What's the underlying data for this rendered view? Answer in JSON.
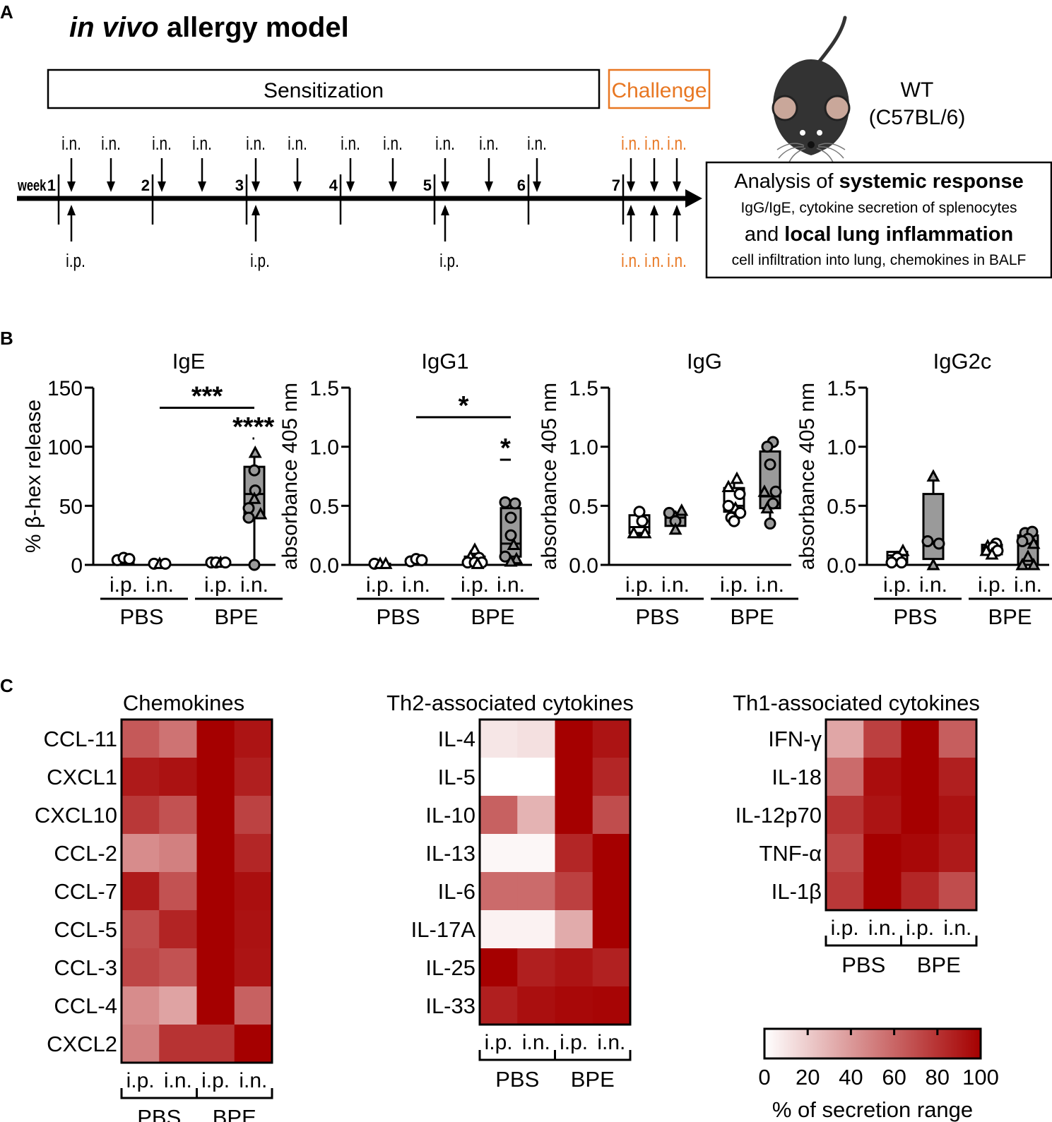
{
  "panel_a": {
    "label": "A",
    "title_italic": "in vivo",
    "title_rest": " allergy model",
    "sensitization": "Sensitization",
    "challenge": "Challenge",
    "week_label": "week",
    "weeks": [
      "1",
      "2",
      "3",
      "4",
      "5",
      "6",
      "7"
    ],
    "in_label": "i.n.",
    "ip_label": "i.p.",
    "strain_line1": "WT",
    "strain_line2": "(C57BL/6)",
    "analysis_pre": "Analysis of ",
    "analysis_bold1": "systemic response",
    "analysis_line2": "IgG/IgE, cytokine secretion of splenocytes",
    "analysis_pre3": "and ",
    "analysis_bold3": "local lung inflammation",
    "analysis_line4": "cell infiltration into lung, chemokines in BALF",
    "colors": {
      "accent": "#e87722"
    }
  },
  "panel_b": {
    "label": "B"
  },
  "panel_c": {
    "label": "C",
    "legend_title": "% of secretion range",
    "legend_ticks": [
      "0",
      "20",
      "40",
      "60",
      "80",
      "100"
    ]
  },
  "chart_data": [
    {
      "type": "box",
      "title": "IgE",
      "ylabel": "% β-hex release",
      "ylim": [
        0,
        150
      ],
      "yticks": [
        "0",
        "50",
        "100",
        "150"
      ],
      "categories": [
        "i.p.",
        "i.n.",
        "i.p.",
        "i.n."
      ],
      "groups": [
        "PBS",
        "BPE"
      ],
      "boxes": [
        {
          "min": 0,
          "q1": 1,
          "median": 3,
          "q3": 5,
          "max": 6,
          "fill": "#ffffff",
          "points": [
            [
              -0.22,
              "o",
              4
            ],
            [
              0,
              "o",
              6
            ],
            [
              0.2,
              "o",
              5
            ]
          ]
        },
        {
          "min": 0,
          "q1": 0.5,
          "median": 1,
          "q3": 2,
          "max": 2.5,
          "fill": "#ffffff",
          "points": [
            [
              -0.2,
              "o",
              1
            ],
            [
              0,
              "^",
              1
            ],
            [
              0.2,
              "o",
              1
            ]
          ]
        },
        {
          "min": 0,
          "q1": 0.5,
          "median": 1.5,
          "q3": 2,
          "max": 3,
          "fill": "#ffffff",
          "points": [
            [
              -0.25,
              "o",
              2
            ],
            [
              -0.08,
              "o",
              2
            ],
            [
              0.08,
              "^",
              2
            ],
            [
              0.25,
              "o",
              2
            ]
          ]
        },
        {
          "min": 0,
          "q1": 40,
          "median": 60,
          "q3": 83,
          "max": 95,
          "fill": "#9a9a9a",
          "points": [
            [
              0.03,
              "^",
              95
            ],
            [
              0,
              "o",
              80
            ],
            [
              0.03,
              "o",
              63
            ],
            [
              0,
              "^",
              56
            ],
            [
              -0.2,
              "o",
              48
            ],
            [
              0.22,
              "^",
              43
            ],
            [
              -0.2,
              "o",
              40
            ],
            [
              0,
              "o",
              0
            ]
          ]
        }
      ],
      "significance": [
        {
          "from": 1,
          "to": 3,
          "y": 133,
          "label": "***"
        },
        {
          "from": 2.95,
          "to": 3.3,
          "y": 107,
          "label": "****"
        }
      ]
    },
    {
      "type": "box",
      "title": "IgG1",
      "ylabel": "absorbance 405 nm",
      "ylim": [
        0,
        1.5
      ],
      "yticks": [
        "0.0",
        "0.5",
        "1.0",
        "1.5"
      ],
      "categories": [
        "i.p.",
        "i.n.",
        "i.p.",
        "i.n."
      ],
      "groups": [
        "PBS",
        "BPE"
      ],
      "boxes": [
        {
          "min": 0,
          "q1": 0,
          "median": 0,
          "q3": 0.01,
          "max": 0.02,
          "fill": "#ffffff",
          "points": [
            [
              -0.2,
              "o",
              0.01
            ],
            [
              0,
              "^",
              0.01
            ],
            [
              0.2,
              "^",
              0.01
            ]
          ]
        },
        {
          "min": 0,
          "q1": 0.01,
          "median": 0.03,
          "q3": 0.05,
          "max": 0.06,
          "fill": "#ffffff",
          "points": [
            [
              -0.2,
              "o",
              0.03
            ],
            [
              0,
              "o",
              0.05
            ],
            [
              0.2,
              "o",
              0.04
            ]
          ]
        },
        {
          "min": 0,
          "q1": 0.01,
          "median": 0.03,
          "q3": 0.07,
          "max": 0.13,
          "fill": "#ffffff",
          "points": [
            [
              0,
              "^",
              0.13
            ],
            [
              -0.15,
              "^",
              0.07
            ],
            [
              0.15,
              "o",
              0.06
            ],
            [
              -0.25,
              "o",
              0.02
            ],
            [
              0,
              "o",
              0.02
            ],
            [
              0.25,
              "o",
              0.02
            ],
            [
              0.1,
              "^",
              0.01
            ]
          ]
        },
        {
          "min": 0.03,
          "q1": 0.07,
          "median": 0.18,
          "q3": 0.48,
          "max": 0.54,
          "fill": "#9a9a9a",
          "points": [
            [
              -0.2,
              "o",
              0.53
            ],
            [
              0.15,
              "o",
              0.52
            ],
            [
              0,
              "o",
              0.4
            ],
            [
              0,
              "o",
              0.25
            ],
            [
              0.1,
              "^",
              0.17
            ],
            [
              -0.2,
              "o",
              0.07
            ],
            [
              0.2,
              "^",
              0.05
            ],
            [
              0,
              "^",
              0.03
            ]
          ]
        }
      ],
      "significance": [
        {
          "from": 1,
          "to": 3,
          "y": 1.25,
          "label": "*"
        },
        {
          "from": 2.7,
          "to": 3.2,
          "y": 0.89,
          "label": "*"
        }
      ]
    },
    {
      "type": "box",
      "title": "IgG",
      "ylabel": "absorbance 405 nm",
      "ylim": [
        0,
        1.5
      ],
      "yticks": [
        "0.0",
        "0.5",
        "1.0",
        "1.5"
      ],
      "categories": [
        "i.p.",
        "i.n.",
        "i.p.",
        "i.n."
      ],
      "groups": [
        "PBS",
        "BPE"
      ],
      "boxes": [
        {
          "min": 0.23,
          "q1": 0.27,
          "median": 0.32,
          "q3": 0.42,
          "max": 0.45,
          "fill": "#ffffff",
          "points": [
            [
              0,
              "o",
              0.45
            ],
            [
              0.1,
              "o",
              0.37
            ],
            [
              -0.2,
              "^",
              0.27
            ],
            [
              0.2,
              "^",
              0.27
            ]
          ]
        },
        {
          "min": 0.3,
          "q1": 0.33,
          "median": 0.4,
          "q3": 0.44,
          "max": 0.46,
          "fill": "#9a9a9a",
          "points": [
            [
              0.22,
              "^",
              0.46
            ],
            [
              -0.22,
              "o",
              0.44
            ],
            [
              0,
              "o",
              0.37
            ],
            [
              0,
              "^",
              0.3
            ]
          ]
        },
        {
          "min": 0.37,
          "q1": 0.45,
          "median": 0.5,
          "q3": 0.65,
          "max": 0.73,
          "fill": "#ffffff",
          "points": [
            [
              0.1,
              "^",
              0.73
            ],
            [
              -0.2,
              "^",
              0.66
            ],
            [
              0.2,
              "o",
              0.6
            ],
            [
              -0.2,
              "o",
              0.5
            ],
            [
              0.05,
              "^",
              0.48
            ],
            [
              0.22,
              "o",
              0.44
            ],
            [
              -0.1,
              "o",
              0.4
            ],
            [
              0,
              "o",
              0.37
            ]
          ]
        },
        {
          "min": 0.35,
          "q1": 0.48,
          "median": 0.58,
          "q3": 0.96,
          "max": 1.04,
          "fill": "#9a9a9a",
          "points": [
            [
              0.1,
              "o",
              1.04
            ],
            [
              -0.1,
              "o",
              1.0
            ],
            [
              0,
              "o",
              0.85
            ],
            [
              -0.2,
              "^",
              0.62
            ],
            [
              0.2,
              "o",
              0.62
            ],
            [
              0.1,
              "o",
              0.52
            ],
            [
              -0.1,
              "^",
              0.48
            ],
            [
              0,
              "o",
              0.35
            ]
          ]
        }
      ],
      "significance": []
    },
    {
      "type": "box",
      "title": "IgG2c",
      "ylabel": "absorbance 405 nm",
      "ylim": [
        0,
        1.5
      ],
      "yticks": [
        "0.0",
        "0.5",
        "1.0",
        "1.5"
      ],
      "categories": [
        "i.p.",
        "i.n.",
        "i.p.",
        "i.n."
      ],
      "groups": [
        "PBS",
        "BPE"
      ],
      "boxes": [
        {
          "min": 0,
          "q1": 0.02,
          "median": 0.08,
          "q3": 0.11,
          "max": 0.12,
          "fill": "#ffffff",
          "points": [
            [
              0.2,
              "^",
              0.12
            ],
            [
              0,
              "o",
              0.06
            ],
            [
              -0.2,
              "o",
              0.02
            ],
            [
              0.15,
              "o",
              0.02
            ]
          ]
        },
        {
          "min": 0,
          "q1": 0.05,
          "median": 0.18,
          "q3": 0.6,
          "max": 0.75,
          "fill": "#9a9a9a",
          "points": [
            [
              0,
              "^",
              0.75
            ],
            [
              -0.2,
              "o",
              0.2
            ],
            [
              0.2,
              "o",
              0.18
            ],
            [
              0,
              "^",
              0
            ]
          ]
        },
        {
          "min": 0.08,
          "q1": 0.09,
          "median": 0.15,
          "q3": 0.17,
          "max": 0.19,
          "fill": "#ffffff",
          "points": [
            [
              0.15,
              "o",
              0.18
            ],
            [
              -0.15,
              "^",
              0.16
            ],
            [
              0.05,
              "o",
              0.15
            ],
            [
              -0.2,
              "^",
              0.12
            ],
            [
              0.2,
              "o",
              0.12
            ],
            [
              0,
              "^",
              0.09
            ]
          ]
        },
        {
          "min": 0,
          "q1": 0,
          "median": 0.2,
          "q3": 0.25,
          "max": 0.28,
          "fill": "#9a9a9a",
          "points": [
            [
              -0.1,
              "o",
              0.27
            ],
            [
              0.15,
              "o",
              0.28
            ],
            [
              0,
              "o",
              0.22
            ],
            [
              -0.2,
              "o",
              0.2
            ],
            [
              0.2,
              "^",
              0.18
            ],
            [
              0,
              "^",
              0.07
            ],
            [
              -0.2,
              "^",
              0
            ],
            [
              0.2,
              "^",
              0
            ]
          ]
        }
      ],
      "significance": []
    },
    {
      "type": "heatmap",
      "title": "Chemokines",
      "rows": [
        "CCL-11",
        "CXCL1",
        "CXCL10",
        "CCL-2",
        "CCL-7",
        "CCL-5",
        "CCL-3",
        "CCL-4",
        "CXCL2"
      ],
      "columns": [
        "i.p.",
        "i.n.",
        "i.p.",
        "i.n."
      ],
      "groups": [
        "PBS",
        "BPE"
      ],
      "values": [
        [
          65,
          55,
          100,
          92
        ],
        [
          90,
          93,
          100,
          88
        ],
        [
          78,
          68,
          100,
          74
        ],
        [
          45,
          50,
          100,
          85
        ],
        [
          90,
          68,
          100,
          94
        ],
        [
          70,
          86,
          100,
          93
        ],
        [
          73,
          68,
          100,
          92
        ],
        [
          45,
          36,
          100,
          62
        ],
        [
          50,
          80,
          80,
          100
        ]
      ]
    },
    {
      "type": "heatmap",
      "title": "Th2-associated cytokines",
      "rows": [
        "IL-4",
        "IL-5",
        "IL-10",
        "IL-13",
        "IL-6",
        "IL-17A",
        "IL-25",
        "IL-33"
      ],
      "columns": [
        "i.p.",
        "i.n.",
        "i.p.",
        "i.n."
      ],
      "groups": [
        "PBS",
        "BPE"
      ],
      "values": [
        [
          10,
          12,
          100,
          92
        ],
        [
          0,
          0,
          100,
          85
        ],
        [
          62,
          30,
          100,
          70
        ],
        [
          3,
          3,
          85,
          100
        ],
        [
          58,
          58,
          75,
          100
        ],
        [
          5,
          5,
          33,
          100
        ],
        [
          100,
          88,
          92,
          87
        ],
        [
          88,
          94,
          97,
          98
        ]
      ]
    },
    {
      "type": "heatmap",
      "title": "Th1-associated cytokines",
      "rows": [
        "IFN-γ",
        "IL-18",
        "IL-12p70",
        "TNF-α",
        "IL-1β"
      ],
      "columns": [
        "i.p.",
        "i.n.",
        "i.p.",
        "i.n."
      ],
      "groups": [
        "PBS",
        "BPE"
      ],
      "values": [
        [
          35,
          75,
          100,
          63
        ],
        [
          58,
          95,
          100,
          88
        ],
        [
          80,
          92,
          100,
          93
        ],
        [
          72,
          100,
          97,
          90
        ],
        [
          78,
          100,
          85,
          70
        ]
      ]
    }
  ]
}
